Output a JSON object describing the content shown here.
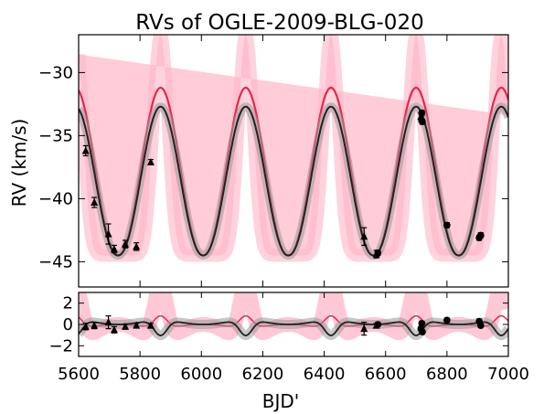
{
  "chart_data": {
    "type": "scatter",
    "title": "RVs of OGLE-2009-BLG-020",
    "xlabel": "BJD'",
    "xlim": [
      5600,
      7000
    ],
    "xticks": [
      "5600",
      "5800",
      "6000",
      "6200",
      "6400",
      "6600",
      "6800",
      "7000"
    ],
    "grid": false,
    "legend": "none",
    "colors": {
      "black_model": "#222222",
      "red_model": "#e8254a",
      "red_band": "#ffb6c8",
      "grey_band": "#999999",
      "data": "#000000"
    },
    "panels": [
      {
        "name": "rv",
        "ylabel": "RV (km/s)",
        "ylim": [
          -47,
          -27
        ],
        "yticks": [
          "−30",
          "−35",
          "−40",
          "−45"
        ],
        "model": {
          "period": 277.5,
          "peak_phase_bjd": 5867,
          "black": {
            "min": -44.5,
            "max": -32.7
          },
          "red": {
            "min": -44.5,
            "max": -31.2
          },
          "band_top": -27
        },
        "series": [
          {
            "marker": "triangle",
            "x": [
              5623,
              5651,
              5697,
              5716,
              5752,
              5788,
              5835,
              6530,
              6570,
              6715,
              6718
            ],
            "y": [
              -36.2,
              -40.3,
              -42.8,
              -44.0,
              -43.6,
              -43.8,
              -37.1,
              -43.0,
              -44.4,
              -33.5,
              -33.7
            ],
            "err": [
              0.4,
              0.4,
              0.8,
              0.3,
              0.3,
              0.3,
              0.2,
              0.7,
              0.3,
              0.3,
              0.3
            ]
          },
          {
            "marker": "circle",
            "x": [
              6575,
              6718,
              6720,
              6800,
              6905,
              6910
            ],
            "y": [
              -44.3,
              -33.2,
              -33.9,
              -42.1,
              -43.1,
              -42.9
            ],
            "err": [
              0.2,
              0.2,
              0.2,
              0.2,
              0.2,
              0.2
            ]
          }
        ]
      },
      {
        "name": "residuals",
        "ylim": [
          -3,
          3
        ],
        "yticks": [
          "2",
          "0",
          "−2"
        ],
        "series": [
          {
            "marker": "triangle",
            "x": [
              5623,
              5651,
              5697,
              5716,
              5752,
              5788,
              5835,
              6530,
              6570
            ],
            "y": [
              -0.2,
              -0.1,
              0.2,
              -0.5,
              -0.2,
              -0.1,
              -0.1,
              -0.4,
              -0.1
            ],
            "err": [
              0.3,
              0.3,
              0.6,
              0.3,
              0.2,
              0.2,
              0.2,
              0.6,
              0.2
            ]
          },
          {
            "marker": "circle",
            "x": [
              6575,
              6715,
              6718,
              6720,
              6800,
              6905,
              6910
            ],
            "y": [
              0.0,
              -0.4,
              0.1,
              -0.7,
              0.4,
              0.3,
              -0.1
            ],
            "err": [
              0.2,
              0.2,
              0.2,
              0.2,
              0.2,
              0.2,
              0.2
            ]
          }
        ]
      }
    ]
  }
}
